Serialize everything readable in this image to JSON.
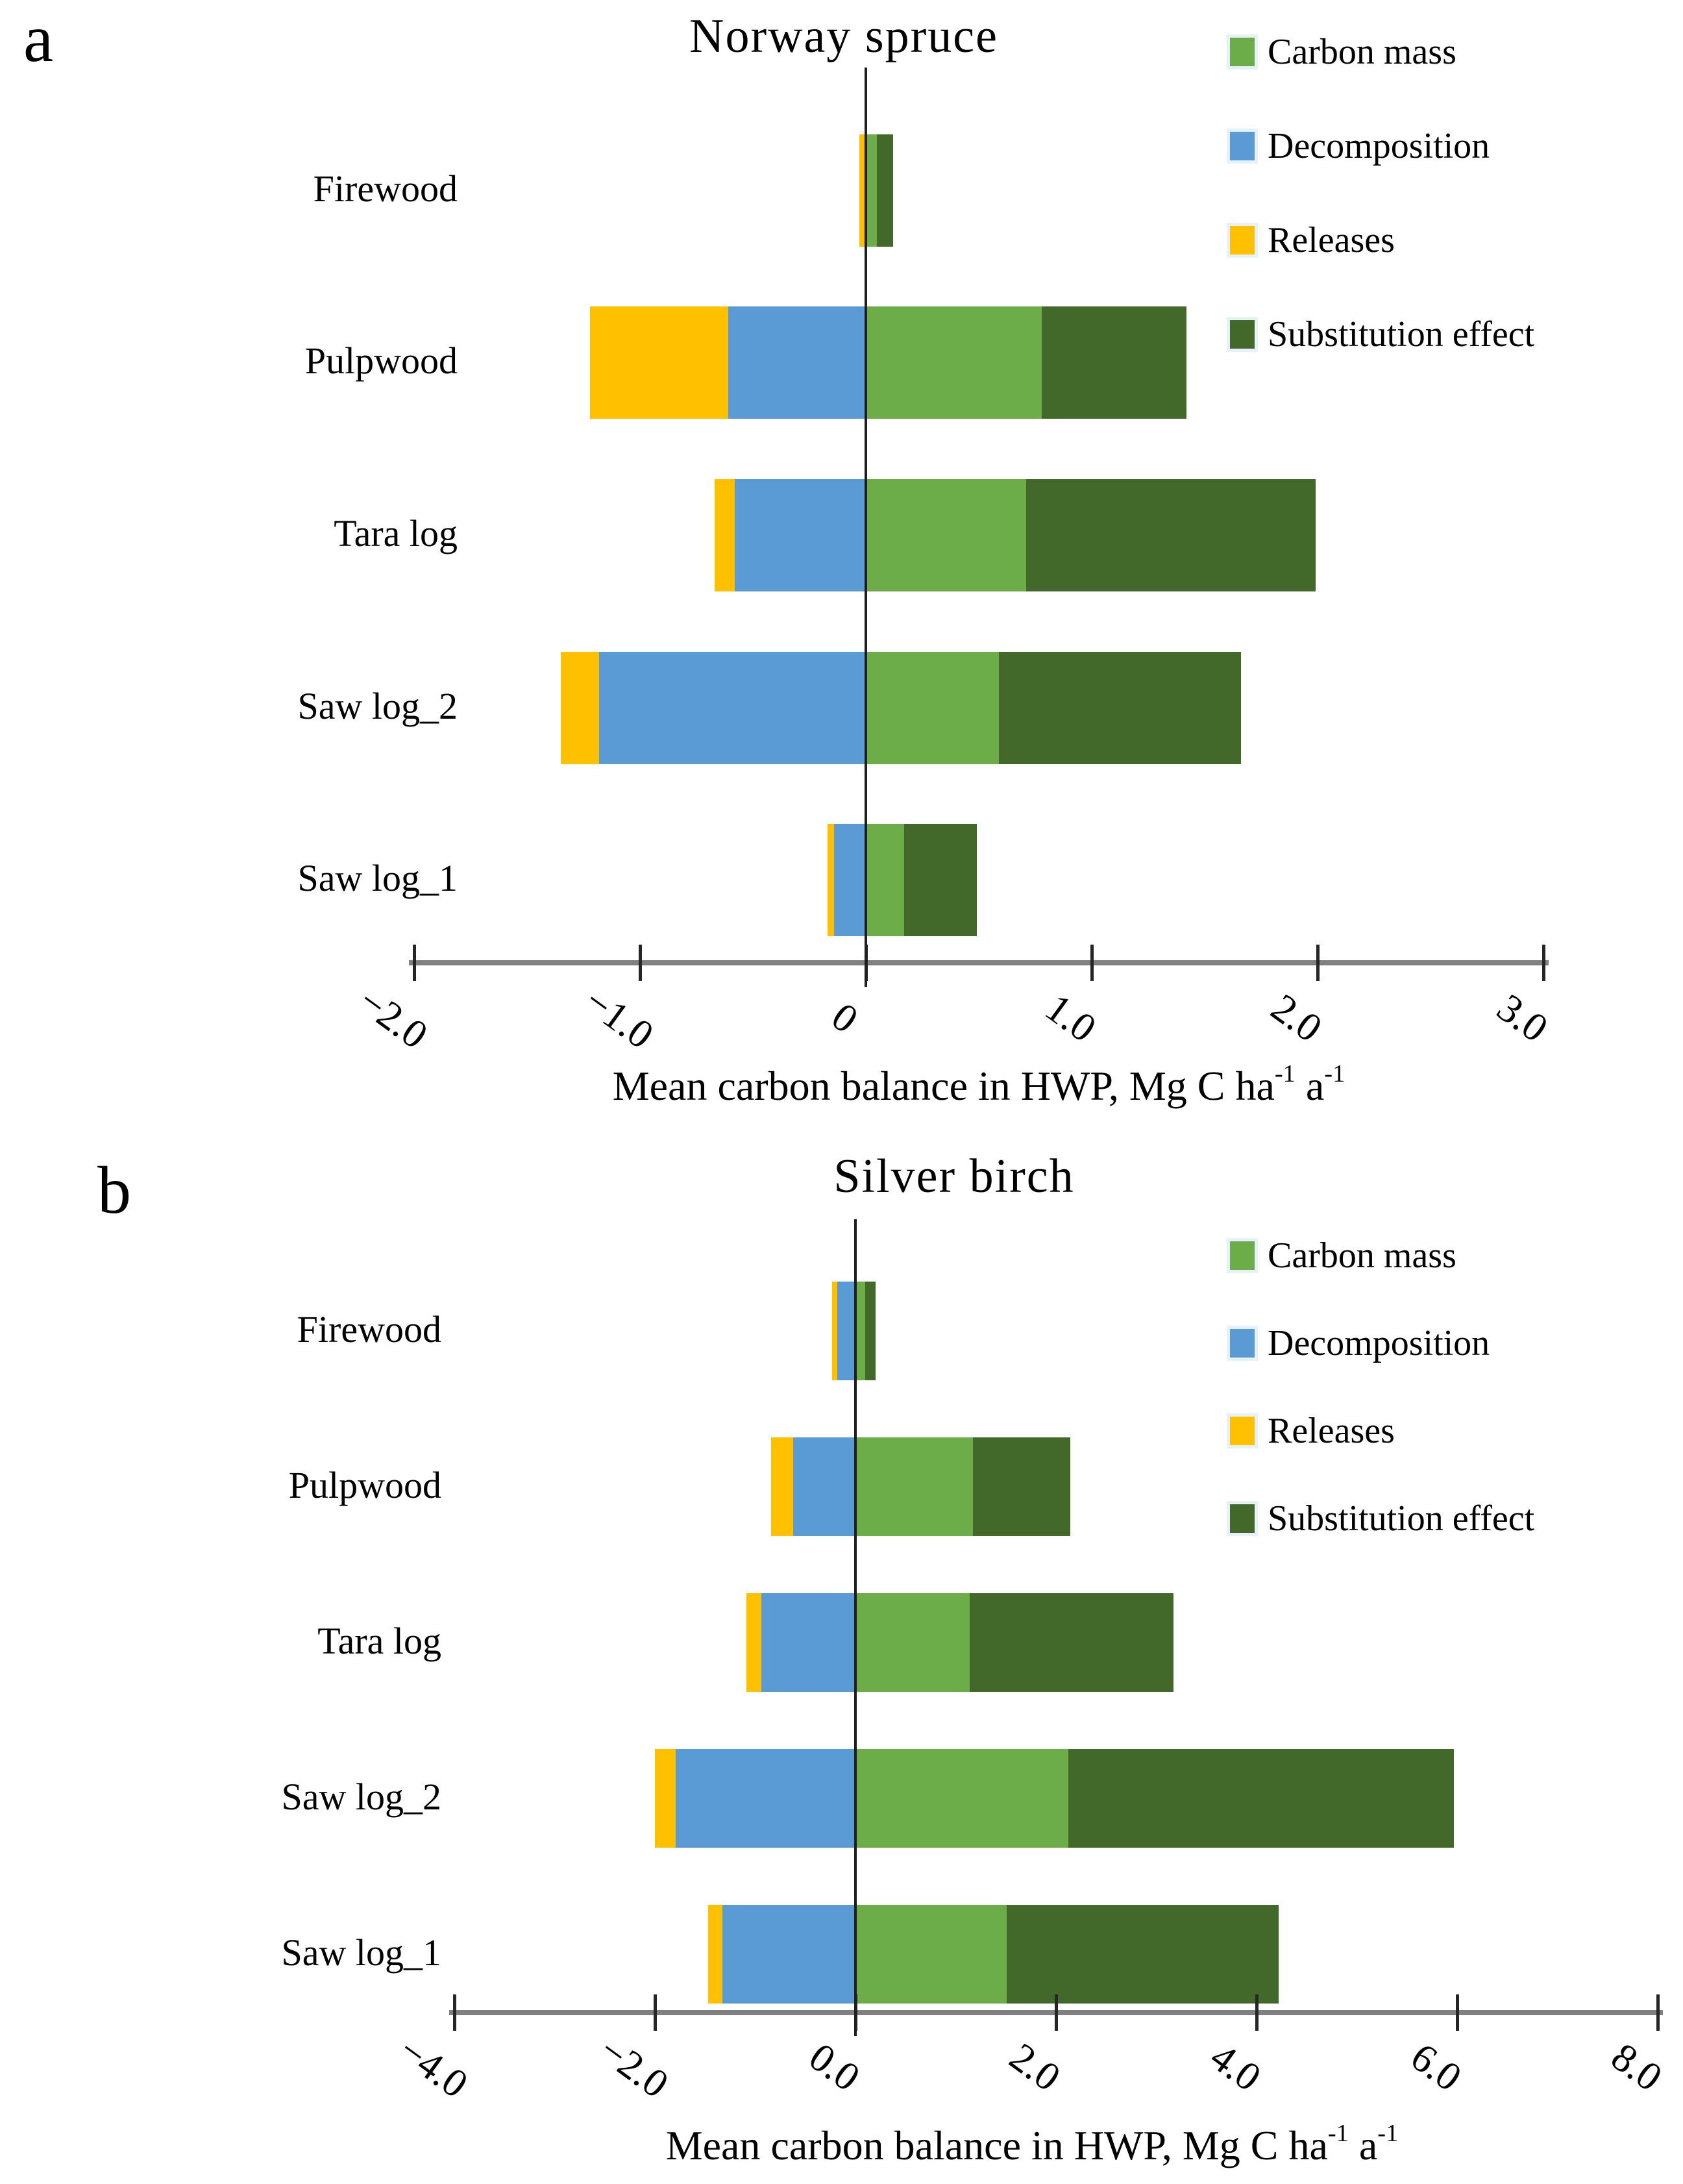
{
  "figure": {
    "panel_a_label": "a",
    "panel_b_label": "b"
  },
  "legend_items": [
    "Carbon mass",
    "Decomposition",
    "Releases",
    "Substitution effect"
  ],
  "colors": {
    "carbon_mass": "#6CAC49",
    "decomposition": "#5B9BD5",
    "releases": "#FFC000",
    "substitution_effect": "#42682A",
    "axis_line": "#808080",
    "zero_line": "#1F1F1F"
  },
  "chart_data": [
    {
      "type": "bar",
      "panel": "a",
      "orientation": "horizontal",
      "stacking": "diverging-stacked",
      "title": "Norway spruce",
      "categories": [
        "Firewood",
        "Pulpwood",
        "Tara log",
        "Saw log_2",
        "Saw log_1"
      ],
      "series": [
        {
          "name": "Carbon mass",
          "color": "#6CAC49",
          "values": [
            0.05,
            0.78,
            0.71,
            0.59,
            0.17
          ]
        },
        {
          "name": "Decomposition",
          "color": "#5B9BD5",
          "values": [
            0.0,
            -0.61,
            -0.58,
            -1.18,
            -0.14
          ]
        },
        {
          "name": "Releases",
          "color": "#FFC000",
          "values": [
            -0.03,
            -0.61,
            -0.09,
            -0.17,
            -0.03
          ]
        },
        {
          "name": "Substitution effect",
          "color": "#42682A",
          "values": [
            0.07,
            0.64,
            1.28,
            1.07,
            0.32
          ]
        }
      ],
      "xlim": [
        -2.0,
        3.0
      ],
      "tick_values": [
        -2,
        -1,
        0,
        1,
        2,
        3
      ],
      "tick_labels": [
        "−2.0",
        "−1.0",
        "0",
        "1.0",
        "2.0",
        "3.0"
      ],
      "xlabel_prefix": "Mean carbon balance in HWP, Mg C ha",
      "xlabel_sup1": "-1",
      "xlabel_mid": " a",
      "xlabel_sup2": "-1",
      "legend_position": "top-right",
      "grid": "off"
    },
    {
      "type": "bar",
      "panel": "b",
      "orientation": "horizontal",
      "stacking": "diverging-stacked",
      "title": "Silver birch",
      "categories": [
        "Firewood",
        "Pulpwood",
        "Tara log",
        "Saw log_2",
        "Saw log_1"
      ],
      "series": [
        {
          "name": "Carbon mass",
          "color": "#6CAC49",
          "values": [
            0.1,
            1.17,
            1.14,
            2.12,
            1.51
          ]
        },
        {
          "name": "Decomposition",
          "color": "#5B9BD5",
          "values": [
            -0.18,
            -0.62,
            -0.94,
            -1.79,
            -1.33
          ]
        },
        {
          "name": "Releases",
          "color": "#FFC000",
          "values": [
            -0.05,
            -0.22,
            -0.15,
            -0.21,
            -0.14
          ]
        },
        {
          "name": "Substitution effect",
          "color": "#42682A",
          "values": [
            0.1,
            0.97,
            2.03,
            3.85,
            2.71
          ]
        }
      ],
      "xlim": [
        -4.0,
        8.0
      ],
      "tick_values": [
        -4,
        -2,
        0,
        2,
        4,
        6,
        8
      ],
      "tick_labels": [
        "−4.0",
        "−2.0",
        "0.0",
        "2.0",
        "4.0",
        "6.0",
        "8.0"
      ],
      "xlabel_prefix": "Mean carbon balance in HWP, Mg C ha",
      "xlabel_sup1": "-1",
      "xlabel_mid": " a",
      "xlabel_sup2": "-1",
      "legend_position": "middle-right",
      "grid": "off"
    }
  ]
}
